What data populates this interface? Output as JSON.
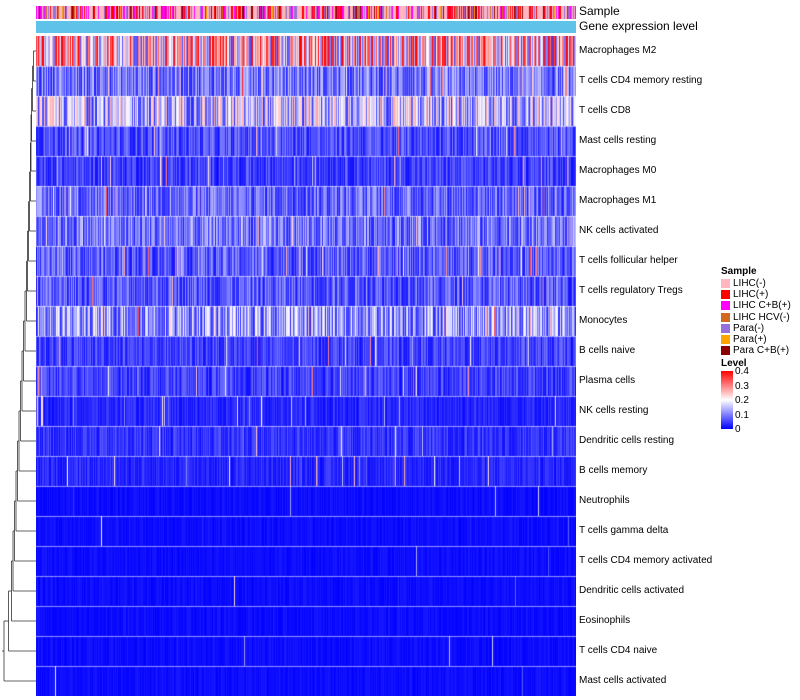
{
  "chart_data": {
    "type": "heatmap",
    "annotations": [
      {
        "name": "Sample",
        "type": "categorical"
      },
      {
        "name": "Gene expression level",
        "type": "continuous",
        "color": "#5FC3E9"
      }
    ],
    "rows": [
      "Macrophages M2",
      "T cells CD4 memory resting",
      "T cells CD8",
      "Mast cells resting",
      "Macrophages M0",
      "Macrophages M1",
      "NK cells activated",
      "T cells follicular helper",
      "T cells regulatory  Tregs",
      "Monocytes",
      "B cells naive",
      "Plasma cells",
      "NK cells resting",
      "Dendritic cells resting",
      "B cells memory",
      "Neutrophils",
      "T cells gamma delta",
      "T cells CD4 memory activated",
      "Dendritic cells activated",
      "Eosinophils",
      "T cells CD4 naive",
      "Mast cells activated"
    ],
    "row_mean_levels": [
      0.24,
      0.09,
      0.15,
      0.06,
      0.05,
      0.08,
      0.09,
      0.07,
      0.07,
      0.12,
      0.05,
      0.05,
      0.03,
      0.04,
      0.03,
      0.01,
      0.015,
      0.01,
      0.01,
      0.005,
      0.005,
      0.01
    ],
    "sample_count": 540,
    "sample_legend": {
      "title": "Sample",
      "items": [
        {
          "label": "LIHC(-)",
          "color": "#FFB6C1"
        },
        {
          "label": "LIHC(+)",
          "color": "#FF0000"
        },
        {
          "label": "LIHC C+B(+)",
          "color": "#FF00FF"
        },
        {
          "label": "LIHC HCV(-)",
          "color": "#D2691E"
        },
        {
          "label": "Para(-)",
          "color": "#9370DB"
        },
        {
          "label": "Para(+)",
          "color": "#FFA500"
        },
        {
          "label": "Para C+B(+)",
          "color": "#8B0000"
        }
      ]
    },
    "level_legend": {
      "title": "Level",
      "range": [
        0,
        0.4
      ],
      "ticks": [
        "0.4",
        "0.3",
        "0.2",
        "0.1",
        "0"
      ],
      "tick_values": [
        0.4,
        0.3,
        0.2,
        0.1,
        0
      ],
      "colors": {
        "low": "#0000FF",
        "mid": "#FFFFFF",
        "high": "#FF0000"
      }
    },
    "dendrogram": {
      "side": "left",
      "merges": [
        [
          0,
          1,
          0.02
        ],
        [
          1,
          2,
          0.05
        ],
        [
          2,
          3,
          0.08
        ],
        [
          3,
          4,
          0.1
        ],
        [
          4,
          5,
          0.12
        ],
        [
          5,
          6,
          0.15
        ],
        [
          6,
          7,
          0.18
        ],
        [
          7,
          8,
          0.22
        ],
        [
          8,
          9,
          0.25
        ],
        [
          9,
          10,
          0.3
        ],
        [
          10,
          11,
          0.35
        ],
        [
          11,
          12,
          0.4
        ],
        [
          12,
          13,
          0.45
        ],
        [
          13,
          14,
          0.5
        ],
        [
          14,
          15,
          0.55
        ],
        [
          15,
          16,
          0.6
        ],
        [
          16,
          17,
          0.65
        ],
        [
          17,
          18,
          0.7
        ],
        [
          18,
          19,
          0.75
        ],
        [
          19,
          20,
          0.85
        ],
        [
          20,
          21,
          1.0
        ]
      ]
    }
  }
}
